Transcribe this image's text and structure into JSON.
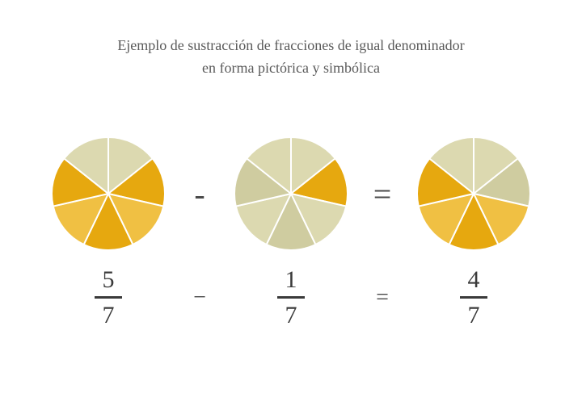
{
  "title_line1": "Ejemplo de sustracción de fracciones de igual denominador",
  "title_line2": "en forma pictórica y simbólica",
  "title_fontsize": 18,
  "title_color": "#5a5a5a",
  "background_color": "#ffffff",
  "denominator": 7,
  "start_angle_deg": -90,
  "colors": {
    "filled_light": "#f0c043",
    "filled_dark": "#e6a80f",
    "empty_light": "#dcd9b0",
    "empty_dark": "#cfcca0",
    "stroke": "#ffffff"
  },
  "pie_radius": 70,
  "stroke_width": 2,
  "operators": {
    "pictorial_minus": "-",
    "pictorial_equals": "=",
    "symbolic_minus": "−",
    "symbolic_equals": "="
  },
  "terms": [
    {
      "numerator": 5,
      "denominator": 7,
      "filled_from": 1,
      "filled_count": 5
    },
    {
      "numerator": 1,
      "denominator": 7,
      "filled_from": 1,
      "filled_count": 1
    },
    {
      "numerator": 4,
      "denominator": 7,
      "filled_from": 2,
      "filled_count": 4
    }
  ]
}
